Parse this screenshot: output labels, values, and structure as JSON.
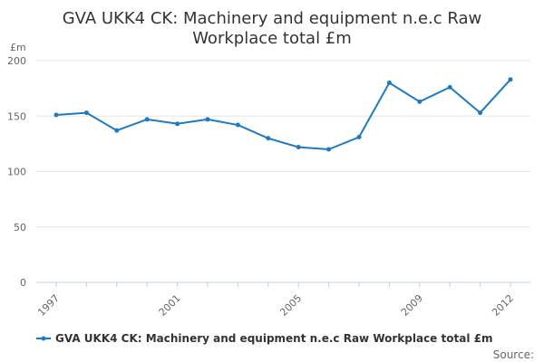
{
  "chart_data": {
    "type": "line",
    "title_lines": [
      "GVA UKK4 CK: Machinery and equipment n.e.c Raw",
      "Workplace total £m"
    ],
    "unit_label": "£m",
    "x": [
      1997,
      1998,
      1999,
      2000,
      2001,
      2002,
      2003,
      2004,
      2005,
      2006,
      2007,
      2008,
      2009,
      2010,
      2011,
      2012
    ],
    "x_tick_labels": [
      "1997",
      "2001",
      "2005",
      "2009",
      "2012"
    ],
    "ylim": [
      0,
      200
    ],
    "y_ticks": [
      0,
      50,
      100,
      150,
      200
    ],
    "series": [
      {
        "name": "GVA UKK4 CK: Machinery and equipment n.e.c Raw Workplace total £m",
        "color": "#1f7abf",
        "values": [
          151,
          153,
          137,
          147,
          143,
          147,
          142,
          130,
          122,
          120,
          131,
          180,
          163,
          176,
          153,
          183
        ]
      }
    ],
    "grid": true,
    "legend_position": "bottom"
  },
  "footer": {
    "source_label": "Source:"
  }
}
